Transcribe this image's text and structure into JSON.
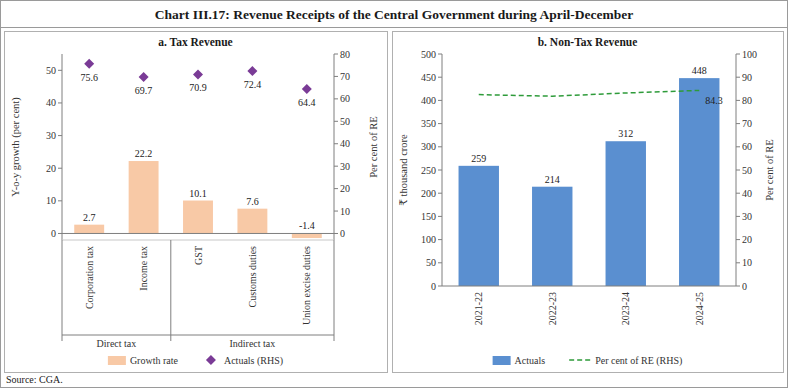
{
  "title": "Chart III.17: Revenue Receipts of the Central Government during April-December",
  "source": "Source: CGA.",
  "chart_data": [
    {
      "type": "bar",
      "title": "a. Tax Revenue",
      "categories": [
        "Corporation tax",
        "Income tax",
        "GST",
        "Customs duties",
        "Union excise duties"
      ],
      "category_groups": [
        {
          "label": "Direct tax",
          "count": 2
        },
        {
          "label": "Indirect tax",
          "count": 3
        }
      ],
      "series": [
        {
          "name": "Growth rate",
          "type": "bar",
          "color": "#f8c9a6",
          "values": [
            2.7,
            22.2,
            10.1,
            7.6,
            -1.4
          ]
        },
        {
          "name": "Actuals (RHS)",
          "type": "scatter",
          "marker": "diamond",
          "color": "#7a3b96",
          "axis": "y2",
          "values": [
            75.6,
            69.7,
            70.9,
            72.4,
            64.4
          ]
        }
      ],
      "ylabel": "Y-o-y growth (per cent)",
      "y2label": "Per cent of RE",
      "ylim": [
        -2,
        55
      ],
      "yticks": [
        0,
        10,
        20,
        30,
        40,
        50
      ],
      "y2lim": [
        -2.9,
        80
      ],
      "y2ticks": [
        0,
        10,
        20,
        30,
        40,
        50,
        60,
        70,
        80
      ],
      "data_labels": true,
      "legend": "bottom"
    },
    {
      "type": "bar",
      "title": "b. Non-Tax Revenue",
      "categories": [
        "2021-22",
        "2022-23",
        "2023-24",
        "2024-25"
      ],
      "series": [
        {
          "name": "Actuals",
          "type": "bar",
          "color": "#5a8fd0",
          "values": [
            259,
            214,
            312,
            448
          ],
          "data_labels": true
        },
        {
          "name": "Per cent of RE (RHS)",
          "type": "line",
          "line_style": "dashed",
          "color": "#2e9b3a",
          "axis": "y2",
          "values": [
            82.5,
            81.8,
            83.2,
            84.3
          ],
          "value_labels": [
            null,
            null,
            null,
            "84.3"
          ]
        }
      ],
      "ylabel": "₹ thousand crore",
      "y2label": "Per cent of RE",
      "ylim": [
        0,
        500
      ],
      "yticks": [
        0,
        50,
        100,
        150,
        200,
        250,
        300,
        350,
        400,
        450,
        500
      ],
      "y2lim": [
        0,
        100
      ],
      "y2ticks": [
        0,
        10,
        20,
        30,
        40,
        50,
        60,
        70,
        80,
        90,
        100
      ],
      "legend": "bottom"
    }
  ]
}
